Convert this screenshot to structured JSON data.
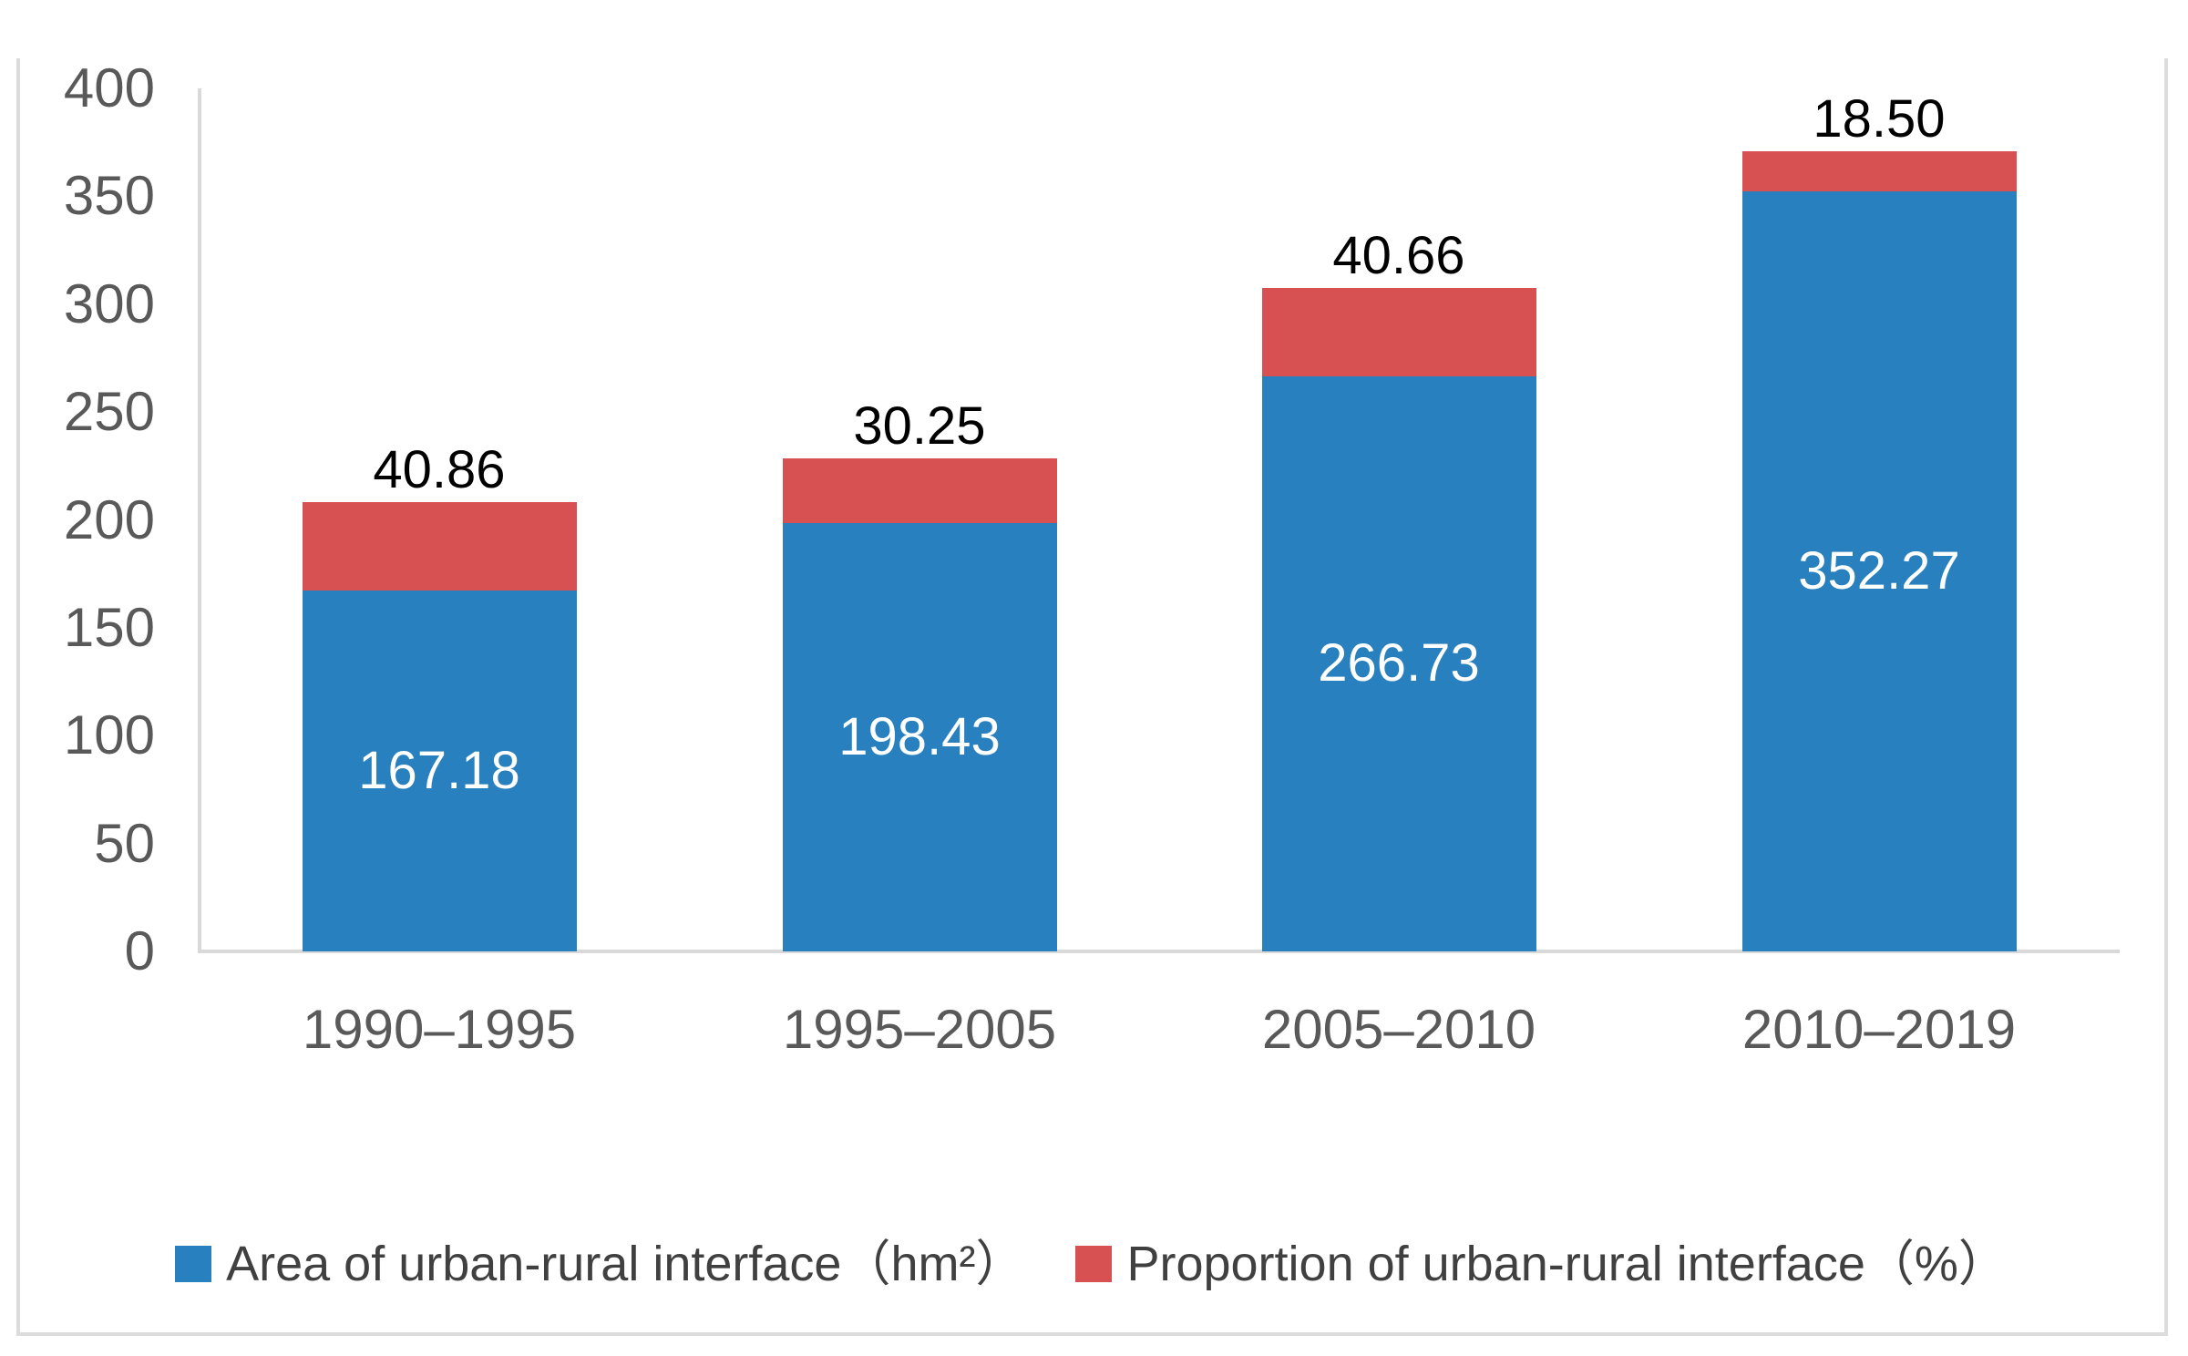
{
  "chart_data": {
    "type": "bar",
    "stacked": true,
    "orientation": "vertical",
    "title": "",
    "xlabel": "",
    "ylabel": "",
    "categories": [
      "1990–1995",
      "1995–2005",
      "2005–2010",
      "2010–2019"
    ],
    "series": [
      {
        "name": "Area of urban-rural interface（hm²）",
        "color": "#2880BF",
        "values": [
          167.18,
          198.43,
          266.73,
          352.27
        ],
        "labels": [
          "167.18",
          "198.43",
          "266.73",
          "352.27"
        ],
        "label_position": "inside-center",
        "label_color": "#ffffff"
      },
      {
        "name": "Proportion of urban-rural interface（%）",
        "color": "#D75153",
        "values": [
          40.86,
          30.25,
          40.66,
          18.5
        ],
        "labels": [
          "40.86",
          "30.25",
          "40.66",
          "18.50"
        ],
        "label_position": "outside-top",
        "label_color": "#000000"
      }
    ],
    "ylim": [
      0,
      400
    ],
    "yticks": [
      0,
      50,
      100,
      150,
      200,
      250,
      300,
      350,
      400
    ],
    "grid": false,
    "legend_position": "bottom",
    "axis_line_color": "#d9d9d9",
    "tick_label_color": "#595959",
    "category_label_color": "#595959",
    "legend_text_color": "#404040",
    "frame_border_color": "#dcdcdc",
    "background_color": "#ffffff"
  }
}
